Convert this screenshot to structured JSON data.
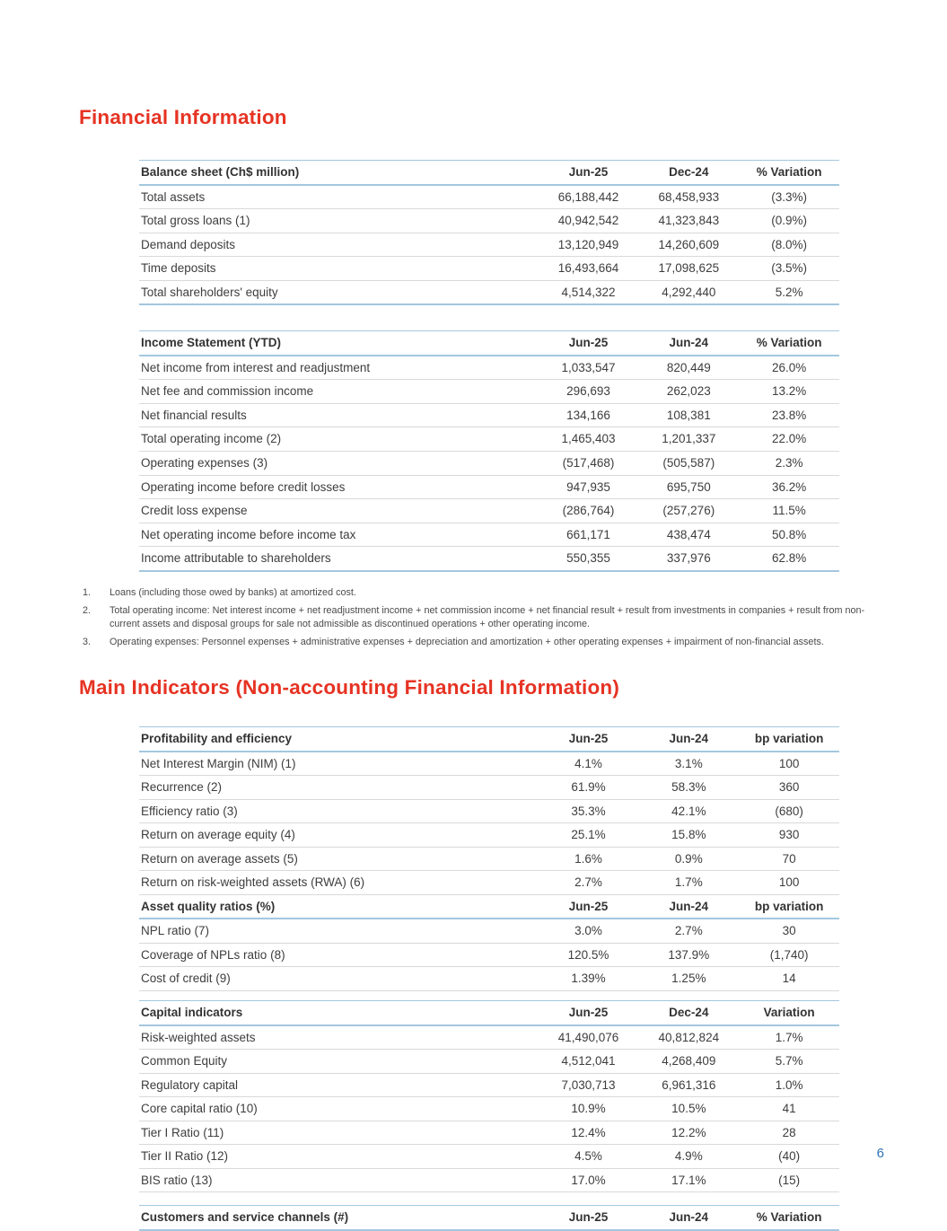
{
  "colors": {
    "accent_red": "#e63323",
    "rule_blue": "#a3c7df",
    "text": "#3d3d3d",
    "page_number_blue": "#2e74b5"
  },
  "page_number": "6",
  "section1": {
    "title": "Financial Information",
    "balance_sheet": {
      "header": [
        "Balance sheet (Ch$ million)",
        "Jun-25",
        "Dec-24",
        "% Variation"
      ],
      "rows": [
        [
          "Total assets",
          "66,188,442",
          "68,458,933",
          "(3.3%)"
        ],
        [
          "Total gross loans (1)",
          "40,942,542",
          "41,323,843",
          "(0.9%)"
        ],
        [
          "Demand deposits",
          "13,120,949",
          "14,260,609",
          "(8.0%)"
        ],
        [
          "Time deposits",
          "16,493,664",
          "17,098,625",
          "(3.5%)"
        ],
        [
          "Total shareholders' equity",
          "4,514,322",
          "4,292,440",
          "5.2%"
        ]
      ]
    },
    "income_statement": {
      "header": [
        "Income Statement (YTD)",
        "Jun-25",
        "Jun-24",
        "% Variation"
      ],
      "rows": [
        [
          "Net income from interest and readjustment",
          "1,033,547",
          "820,449",
          "26.0%"
        ],
        [
          "Net fee and commission income",
          "296,693",
          "262,023",
          "13.2%"
        ],
        [
          "Net financial results",
          "134,166",
          "108,381",
          "23.8%"
        ],
        [
          "Total operating income (2)",
          "1,465,403",
          "1,201,337",
          "22.0%"
        ],
        [
          "Operating expenses (3)",
          "(517,468)",
          "(505,587)",
          "2.3%"
        ],
        [
          "Operating income before credit losses",
          "947,935",
          "695,750",
          "36.2%"
        ],
        [
          "Credit loss expense",
          "(286,764)",
          "(257,276)",
          "11.5%"
        ],
        [
          "Net operating income before income tax",
          "661,171",
          "438,474",
          "50.8%"
        ],
        [
          "Income attributable to shareholders",
          "550,355",
          "337,976",
          "62.8%"
        ]
      ]
    },
    "footnotes": [
      {
        "num": "1.",
        "text": "Loans (including those owed by banks) at amortized cost."
      },
      {
        "num": "2.",
        "text": "Total operating income: Net interest income + net readjustment income + net commission income + net financial result + result from investments in companies + result from non-current assets and disposal groups for sale not admissible as discontinued operations + other operating income."
      },
      {
        "num": "3.",
        "text": "Operating expenses: Personnel expenses + administrative expenses + depreciation and amortization + other operating expenses + impairment of non-financial assets."
      }
    ]
  },
  "section2": {
    "title": "Main Indicators (Non-accounting Financial Information)",
    "profitability": {
      "header": [
        "Profitability and efficiency",
        "Jun-25",
        "Jun-24",
        "bp variation"
      ],
      "rows": [
        [
          "Net Interest Margin (NIM) (1)",
          "4.1%",
          "3.1%",
          "100"
        ],
        [
          "Recurrence (2)",
          "61.9%",
          "58.3%",
          "360"
        ],
        [
          "Efficiency ratio (3)",
          "35.3%",
          "42.1%",
          "(680)"
        ],
        [
          "Return on average equity (4)",
          "25.1%",
          "15.8%",
          "930"
        ],
        [
          "Return on average assets (5)",
          "1.6%",
          "0.9%",
          "70"
        ],
        [
          "Return on risk-weighted assets (RWA) (6)",
          "2.7%",
          "1.7%",
          "100"
        ]
      ]
    },
    "asset_quality": {
      "header": [
        "Asset quality ratios (%)",
        "Jun-25",
        "Jun-24",
        "bp variation"
      ],
      "rows": [
        [
          "NPL ratio (7)",
          "3.0%",
          "2.7%",
          "30"
        ],
        [
          "Coverage of NPLs ratio (8)",
          "120.5%",
          "137.9%",
          "(1,740)"
        ],
        [
          "Cost of credit (9)",
          "1.39%",
          "1.25%",
          "14"
        ]
      ]
    },
    "capital": {
      "header": [
        "Capital indicators",
        "Jun-25",
        "Dec-24",
        "Variation"
      ],
      "rows": [
        [
          "Risk-weighted assets",
          "41,490,076",
          "40,812,824",
          "1.7%"
        ],
        [
          "Common Equity",
          "4,512,041",
          "4,268,409",
          "5.7%"
        ],
        [
          "Regulatory capital",
          "7,030,713",
          "6,961,316",
          "1.0%"
        ],
        [
          "Core capital ratio (10)",
          "10.9%",
          "10.5%",
          "41"
        ],
        [
          "Tier I Ratio (11)",
          "12.4%",
          "12.2%",
          "28"
        ],
        [
          "Tier II Ratio (12)",
          "4.5%",
          "4.9%",
          "(40)"
        ],
        [
          "BIS ratio (13)",
          "17.0%",
          "17.1%",
          "(15)"
        ]
      ]
    },
    "customers": {
      "header": [
        "Customers and service channels (#)",
        "Jun-25",
        "Jun-24",
        "% Variation"
      ],
      "rows": []
    }
  }
}
